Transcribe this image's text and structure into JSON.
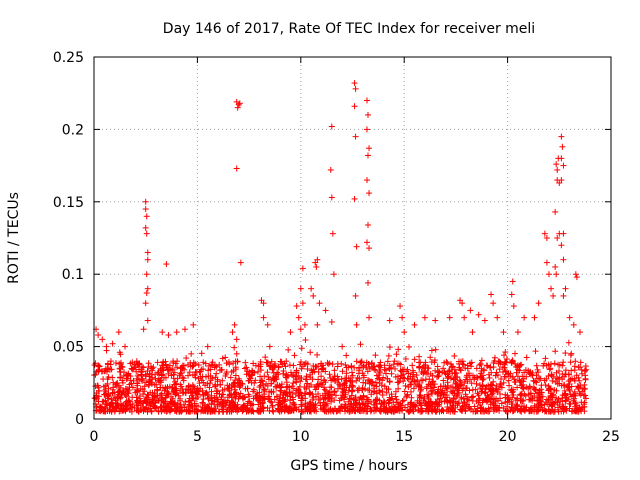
{
  "chart_data": {
    "type": "scatter",
    "title": "Day 146 of 2017, Rate Of TEC Index for receiver meli",
    "xlabel": "GPS time / hours",
    "ylabel": "ROTI / TECUs",
    "xlim": [
      0,
      25
    ],
    "ylim": [
      0,
      0.25
    ],
    "x_ticks": [
      0,
      5,
      10,
      15,
      20,
      25
    ],
    "x_tick_labels": [
      "0",
      "5",
      "10",
      "15",
      "20",
      "25"
    ],
    "y_ticks": [
      0,
      0.05,
      0.1,
      0.15,
      0.2,
      0.25
    ],
    "y_tick_labels": [
      "0",
      "0.05",
      "0.1",
      "0.15",
      "0.2",
      "0.25"
    ],
    "grid": true,
    "marker": "+",
    "color": "#ff0000",
    "series": [
      {
        "name": "ROTI",
        "base_band": {
          "x_range": [
            0,
            23.8
          ],
          "y_range": [
            0.005,
            0.04
          ],
          "density": "dense"
        },
        "points": [
          [
            0.1,
            0.062
          ],
          [
            0.2,
            0.058
          ],
          [
            0.4,
            0.055
          ],
          [
            0.6,
            0.05
          ],
          [
            0.9,
            0.052
          ],
          [
            1.2,
            0.06
          ],
          [
            1.5,
            0.05
          ],
          [
            2.5,
            0.15
          ],
          [
            2.5,
            0.145
          ],
          [
            2.55,
            0.14
          ],
          [
            2.5,
            0.132
          ],
          [
            2.55,
            0.128
          ],
          [
            2.6,
            0.115
          ],
          [
            2.6,
            0.11
          ],
          [
            2.55,
            0.1
          ],
          [
            2.6,
            0.09
          ],
          [
            2.55,
            0.087
          ],
          [
            2.5,
            0.08
          ],
          [
            2.6,
            0.068
          ],
          [
            2.4,
            0.062
          ],
          [
            3.5,
            0.107
          ],
          [
            3.3,
            0.06
          ],
          [
            3.6,
            0.058
          ],
          [
            4.0,
            0.06
          ],
          [
            4.4,
            0.062
          ],
          [
            4.8,
            0.065
          ],
          [
            4.7,
            0.045
          ],
          [
            5.5,
            0.05
          ],
          [
            6.9,
            0.219
          ],
          [
            7.0,
            0.217
          ],
          [
            6.95,
            0.215
          ],
          [
            7.05,
            0.218
          ],
          [
            6.9,
            0.173
          ],
          [
            7.1,
            0.108
          ],
          [
            6.8,
            0.065
          ],
          [
            6.7,
            0.06
          ],
          [
            6.9,
            0.055
          ],
          [
            6.9,
            0.045
          ],
          [
            8.1,
            0.082
          ],
          [
            8.2,
            0.08
          ],
          [
            8.2,
            0.07
          ],
          [
            8.4,
            0.065
          ],
          [
            8.5,
            0.05
          ],
          [
            9.5,
            0.06
          ],
          [
            9.8,
            0.078
          ],
          [
            10.1,
            0.104
          ],
          [
            10.0,
            0.09
          ],
          [
            10.1,
            0.08
          ],
          [
            9.9,
            0.07
          ],
          [
            10.2,
            0.065
          ],
          [
            10.0,
            0.062
          ],
          [
            10.7,
            0.108
          ],
          [
            10.75,
            0.105
          ],
          [
            10.8,
            0.11
          ],
          [
            10.5,
            0.09
          ],
          [
            10.6,
            0.085
          ],
          [
            10.9,
            0.08
          ],
          [
            10.8,
            0.065
          ],
          [
            11.2,
            0.075
          ],
          [
            11.5,
            0.202
          ],
          [
            11.45,
            0.172
          ],
          [
            11.5,
            0.153
          ],
          [
            11.55,
            0.128
          ],
          [
            11.6,
            0.1
          ],
          [
            11.5,
            0.067
          ],
          [
            12.0,
            0.05
          ],
          [
            12.6,
            0.232
          ],
          [
            12.65,
            0.228
          ],
          [
            12.6,
            0.216
          ],
          [
            12.65,
            0.195
          ],
          [
            12.6,
            0.152
          ],
          [
            12.7,
            0.119
          ],
          [
            12.65,
            0.085
          ],
          [
            12.7,
            0.065
          ],
          [
            13.2,
            0.22
          ],
          [
            13.25,
            0.21
          ],
          [
            13.2,
            0.2
          ],
          [
            13.3,
            0.187
          ],
          [
            13.25,
            0.182
          ],
          [
            13.2,
            0.165
          ],
          [
            13.3,
            0.156
          ],
          [
            13.25,
            0.134
          ],
          [
            13.2,
            0.122
          ],
          [
            13.3,
            0.118
          ],
          [
            13.25,
            0.094
          ],
          [
            13.3,
            0.07
          ],
          [
            14.3,
            0.068
          ],
          [
            14.8,
            0.078
          ],
          [
            14.9,
            0.07
          ],
          [
            15.0,
            0.06
          ],
          [
            15.5,
            0.065
          ],
          [
            16.0,
            0.07
          ],
          [
            16.5,
            0.068
          ],
          [
            17.2,
            0.07
          ],
          [
            17.7,
            0.082
          ],
          [
            17.8,
            0.08
          ],
          [
            17.9,
            0.07
          ],
          [
            18.2,
            0.075
          ],
          [
            18.3,
            0.06
          ],
          [
            18.6,
            0.072
          ],
          [
            18.9,
            0.068
          ],
          [
            19.2,
            0.086
          ],
          [
            19.3,
            0.08
          ],
          [
            19.5,
            0.07
          ],
          [
            19.8,
            0.06
          ],
          [
            20.2,
            0.086
          ],
          [
            20.25,
            0.095
          ],
          [
            20.3,
            0.078
          ],
          [
            20.5,
            0.06
          ],
          [
            20.8,
            0.07
          ],
          [
            21.3,
            0.07
          ],
          [
            21.5,
            0.08
          ],
          [
            21.8,
            0.128
          ],
          [
            21.9,
            0.125
          ],
          [
            21.9,
            0.108
          ],
          [
            22.0,
            0.1
          ],
          [
            22.1,
            0.09
          ],
          [
            22.2,
            0.085
          ],
          [
            22.3,
            0.143
          ],
          [
            22.35,
            0.176
          ],
          [
            22.4,
            0.172
          ],
          [
            22.4,
            0.165
          ],
          [
            22.45,
            0.18
          ],
          [
            22.5,
            0.163
          ],
          [
            22.5,
            0.128
          ],
          [
            22.4,
            0.125
          ],
          [
            22.3,
            0.105
          ],
          [
            22.35,
            0.1
          ],
          [
            22.6,
            0.195
          ],
          [
            22.65,
            0.188
          ],
          [
            22.6,
            0.18
          ],
          [
            22.7,
            0.175
          ],
          [
            22.6,
            0.165
          ],
          [
            22.7,
            0.128
          ],
          [
            22.6,
            0.12
          ],
          [
            22.7,
            0.11
          ],
          [
            22.8,
            0.09
          ],
          [
            22.7,
            0.085
          ],
          [
            23.0,
            0.07
          ],
          [
            23.2,
            0.065
          ],
          [
            23.3,
            0.1
          ],
          [
            23.35,
            0.098
          ],
          [
            23.5,
            0.06
          ]
        ]
      }
    ]
  }
}
